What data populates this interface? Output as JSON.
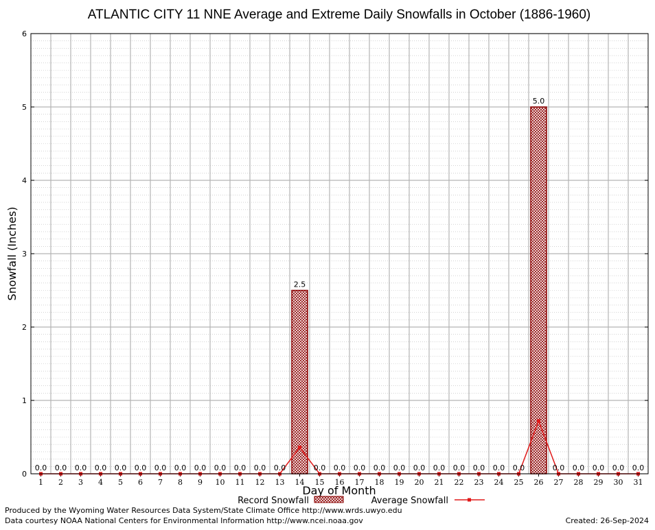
{
  "chart_data": {
    "type": "bar",
    "title": "ATLANTIC CITY 11 NNE Average and Extreme Daily Snowfalls in October (1886-1960)",
    "xlabel": "Day of Month",
    "ylabel": "Snowfall (Inches)",
    "ylim": [
      0,
      6
    ],
    "yticks": [
      "0",
      "1",
      "2",
      "3",
      "4",
      "5",
      "6"
    ],
    "categories": [
      "1",
      "2",
      "3",
      "4",
      "5",
      "6",
      "7",
      "8",
      "9",
      "10",
      "11",
      "12",
      "13",
      "14",
      "15",
      "16",
      "17",
      "18",
      "19",
      "20",
      "21",
      "22",
      "23",
      "24",
      "25",
      "26",
      "27",
      "28",
      "29",
      "30",
      "31"
    ],
    "series": [
      {
        "name": "Record Snowfall",
        "kind": "bar",
        "color": "#8b0000",
        "values": [
          0,
          0,
          0,
          0,
          0,
          0,
          0,
          0,
          0,
          0,
          0,
          0,
          0,
          2.5,
          0,
          0,
          0,
          0,
          0,
          0,
          0,
          0,
          0,
          0,
          0,
          5.0,
          0,
          0,
          0,
          0,
          0
        ],
        "labels": [
          "0.0",
          "0.0",
          "0.0",
          "0.0",
          "0.0",
          "0.0",
          "0.0",
          "0.0",
          "0.0",
          "0.0",
          "0.0",
          "0.0",
          "0.0",
          "2.5",
          "0.0",
          "0.0",
          "0.0",
          "0.0",
          "0.0",
          "0.0",
          "0.0",
          "0.0",
          "0.0",
          "0.0",
          "0.0",
          "5.0",
          "0.0",
          "0.0",
          "0.0",
          "0.0",
          "0.0"
        ]
      },
      {
        "name": "Average Snowfall",
        "kind": "line",
        "color": "#e01818",
        "values": [
          0,
          0,
          0,
          0,
          0,
          0,
          0,
          0,
          0,
          0,
          0,
          0,
          0,
          0.36,
          0,
          0,
          0,
          0,
          0,
          0,
          0,
          0,
          0,
          0,
          0,
          0.72,
          0,
          0,
          0,
          0,
          0
        ]
      }
    ],
    "grid": true,
    "legend_position": "bottom-center"
  },
  "footer": {
    "produced_by": "Produced by the Wyoming Water Resources Data System/State Climate Office http://www.wrds.uwyo.edu",
    "data_courtesy": "Data courtesy NOAA National Centers for Environmental Information http://www.ncei.noaa.gov",
    "created": "Created: 26-Sep-2024"
  }
}
